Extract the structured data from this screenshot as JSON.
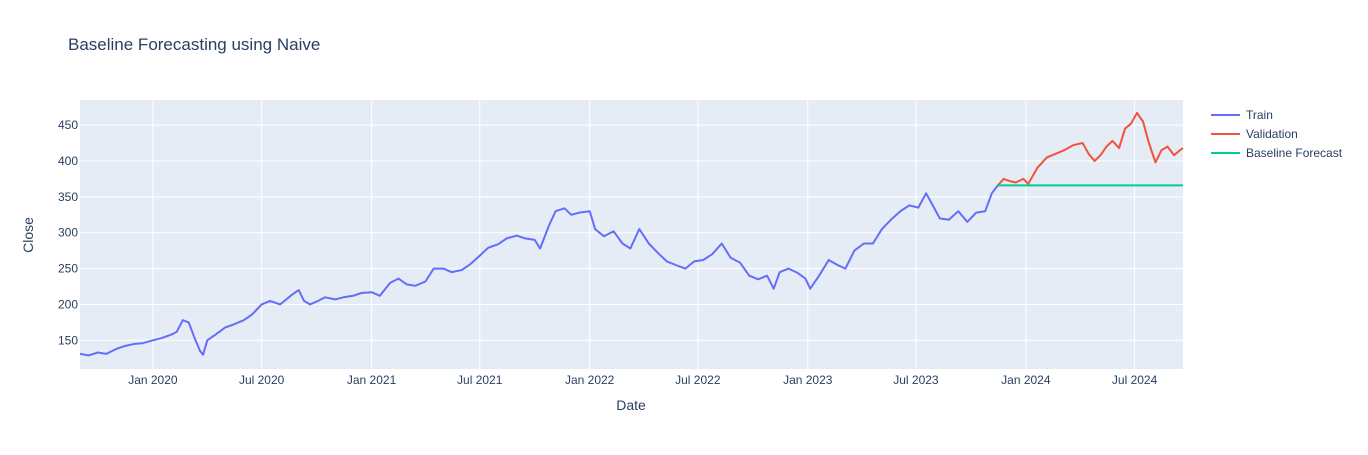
{
  "chart_data": {
    "type": "line",
    "title": "Baseline Forecasting using Naive",
    "xlabel": "Date",
    "ylabel": "Close",
    "xlim": [
      "2019-09-01",
      "2024-09-20"
    ],
    "ylim": [
      110,
      485
    ],
    "x_ticks": [
      {
        "date": "2020-01-01",
        "label": "Jan 2020"
      },
      {
        "date": "2020-07-01",
        "label": "Jul 2020"
      },
      {
        "date": "2021-01-01",
        "label": "Jan 2021"
      },
      {
        "date": "2021-07-01",
        "label": "Jul 2021"
      },
      {
        "date": "2022-01-01",
        "label": "Jan 2022"
      },
      {
        "date": "2022-07-01",
        "label": "Jul 2022"
      },
      {
        "date": "2023-01-01",
        "label": "Jan 2023"
      },
      {
        "date": "2023-07-01",
        "label": "Jul 2023"
      },
      {
        "date": "2024-01-01",
        "label": "Jan 2024"
      },
      {
        "date": "2024-07-01",
        "label": "Jul 2024"
      }
    ],
    "y_ticks": [
      150,
      200,
      250,
      300,
      350,
      400,
      450
    ],
    "legend_position": "top-right",
    "grid": true,
    "colors": {
      "plot_bg": "#e5ecf6",
      "grid": "#ffffff",
      "text": "#2a3f5f",
      "title": "#2a3f5f"
    },
    "series": [
      {
        "name": "Train",
        "color": "#636efa",
        "points": [
          [
            "2019-09-01",
            131
          ],
          [
            "2019-09-15",
            129
          ],
          [
            "2019-10-01",
            133
          ],
          [
            "2019-10-15",
            131
          ],
          [
            "2019-11-01",
            138
          ],
          [
            "2019-11-15",
            142
          ],
          [
            "2019-12-01",
            145
          ],
          [
            "2019-12-15",
            146
          ],
          [
            "2020-01-01",
            150
          ],
          [
            "2020-01-15",
            153
          ],
          [
            "2020-02-01",
            158
          ],
          [
            "2020-02-10",
            162
          ],
          [
            "2020-02-20",
            178
          ],
          [
            "2020-03-01",
            175
          ],
          [
            "2020-03-10",
            155
          ],
          [
            "2020-03-20",
            135
          ],
          [
            "2020-03-25",
            130
          ],
          [
            "2020-04-01",
            150
          ],
          [
            "2020-04-15",
            158
          ],
          [
            "2020-05-01",
            168
          ],
          [
            "2020-05-15",
            172
          ],
          [
            "2020-06-01",
            178
          ],
          [
            "2020-06-15",
            186
          ],
          [
            "2020-07-01",
            200
          ],
          [
            "2020-07-15",
            205
          ],
          [
            "2020-08-01",
            200
          ],
          [
            "2020-08-20",
            213
          ],
          [
            "2020-09-01",
            220
          ],
          [
            "2020-09-10",
            205
          ],
          [
            "2020-09-20",
            200
          ],
          [
            "2020-10-01",
            204
          ],
          [
            "2020-10-15",
            210
          ],
          [
            "2020-11-01",
            207
          ],
          [
            "2020-11-15",
            210
          ],
          [
            "2020-12-01",
            212
          ],
          [
            "2020-12-15",
            216
          ],
          [
            "2021-01-01",
            217
          ],
          [
            "2021-01-15",
            212
          ],
          [
            "2021-02-01",
            230
          ],
          [
            "2021-02-15",
            236
          ],
          [
            "2021-03-01",
            228
          ],
          [
            "2021-03-15",
            226
          ],
          [
            "2021-04-01",
            232
          ],
          [
            "2021-04-15",
            250
          ],
          [
            "2021-05-01",
            250
          ],
          [
            "2021-05-15",
            245
          ],
          [
            "2021-06-01",
            248
          ],
          [
            "2021-06-15",
            256
          ],
          [
            "2021-07-01",
            268
          ],
          [
            "2021-07-15",
            279
          ],
          [
            "2021-08-01",
            284
          ],
          [
            "2021-08-15",
            292
          ],
          [
            "2021-09-01",
            296
          ],
          [
            "2021-09-15",
            292
          ],
          [
            "2021-10-01",
            290
          ],
          [
            "2021-10-10",
            278
          ],
          [
            "2021-10-25",
            310
          ],
          [
            "2021-11-05",
            330
          ],
          [
            "2021-11-20",
            334
          ],
          [
            "2021-12-01",
            325
          ],
          [
            "2021-12-15",
            328
          ],
          [
            "2022-01-01",
            330
          ],
          [
            "2022-01-10",
            305
          ],
          [
            "2022-01-25",
            295
          ],
          [
            "2022-02-10",
            302
          ],
          [
            "2022-02-25",
            285
          ],
          [
            "2022-03-10",
            278
          ],
          [
            "2022-03-25",
            305
          ],
          [
            "2022-04-10",
            285
          ],
          [
            "2022-04-25",
            272
          ],
          [
            "2022-05-10",
            260
          ],
          [
            "2022-05-25",
            255
          ],
          [
            "2022-06-10",
            250
          ],
          [
            "2022-06-25",
            260
          ],
          [
            "2022-07-10",
            262
          ],
          [
            "2022-07-25",
            270
          ],
          [
            "2022-08-10",
            285
          ],
          [
            "2022-08-25",
            265
          ],
          [
            "2022-09-10",
            258
          ],
          [
            "2022-09-25",
            240
          ],
          [
            "2022-10-10",
            235
          ],
          [
            "2022-10-25",
            240
          ],
          [
            "2022-11-05",
            222
          ],
          [
            "2022-11-15",
            245
          ],
          [
            "2022-11-30",
            250
          ],
          [
            "2022-12-15",
            244
          ],
          [
            "2022-12-28",
            236
          ],
          [
            "2023-01-05",
            222
          ],
          [
            "2023-01-20",
            240
          ],
          [
            "2023-02-05",
            262
          ],
          [
            "2023-02-20",
            255
          ],
          [
            "2023-03-05",
            250
          ],
          [
            "2023-03-20",
            275
          ],
          [
            "2023-04-05",
            285
          ],
          [
            "2023-04-20",
            285
          ],
          [
            "2023-05-05",
            305
          ],
          [
            "2023-05-20",
            318
          ],
          [
            "2023-06-05",
            330
          ],
          [
            "2023-06-20",
            338
          ],
          [
            "2023-07-05",
            335
          ],
          [
            "2023-07-18",
            355
          ],
          [
            "2023-07-28",
            340
          ],
          [
            "2023-08-10",
            320
          ],
          [
            "2023-08-25",
            318
          ],
          [
            "2023-09-10",
            330
          ],
          [
            "2023-09-25",
            315
          ],
          [
            "2023-10-10",
            328
          ],
          [
            "2023-10-25",
            330
          ],
          [
            "2023-11-05",
            355
          ],
          [
            "2023-11-15",
            366
          ]
        ]
      },
      {
        "name": "Validation",
        "color": "#ef553b",
        "points": [
          [
            "2023-11-15",
            366
          ],
          [
            "2023-11-25",
            375
          ],
          [
            "2023-12-05",
            372
          ],
          [
            "2023-12-15",
            370
          ],
          [
            "2023-12-28",
            375
          ],
          [
            "2024-01-05",
            368
          ],
          [
            "2024-01-20",
            390
          ],
          [
            "2024-02-05",
            405
          ],
          [
            "2024-02-20",
            410
          ],
          [
            "2024-03-05",
            415
          ],
          [
            "2024-03-20",
            422
          ],
          [
            "2024-04-05",
            425
          ],
          [
            "2024-04-15",
            410
          ],
          [
            "2024-04-25",
            400
          ],
          [
            "2024-05-05",
            408
          ],
          [
            "2024-05-15",
            420
          ],
          [
            "2024-05-25",
            428
          ],
          [
            "2024-06-05",
            418
          ],
          [
            "2024-06-15",
            445
          ],
          [
            "2024-06-25",
            452
          ],
          [
            "2024-07-05",
            467
          ],
          [
            "2024-07-15",
            455
          ],
          [
            "2024-07-25",
            425
          ],
          [
            "2024-08-05",
            398
          ],
          [
            "2024-08-15",
            415
          ],
          [
            "2024-08-25",
            420
          ],
          [
            "2024-09-05",
            408
          ],
          [
            "2024-09-15",
            415
          ],
          [
            "2024-09-20",
            418
          ]
        ]
      },
      {
        "name": "Baseline Forecast",
        "color": "#00cc96",
        "points": [
          [
            "2023-11-15",
            366
          ],
          [
            "2024-09-20",
            366
          ]
        ]
      }
    ]
  }
}
